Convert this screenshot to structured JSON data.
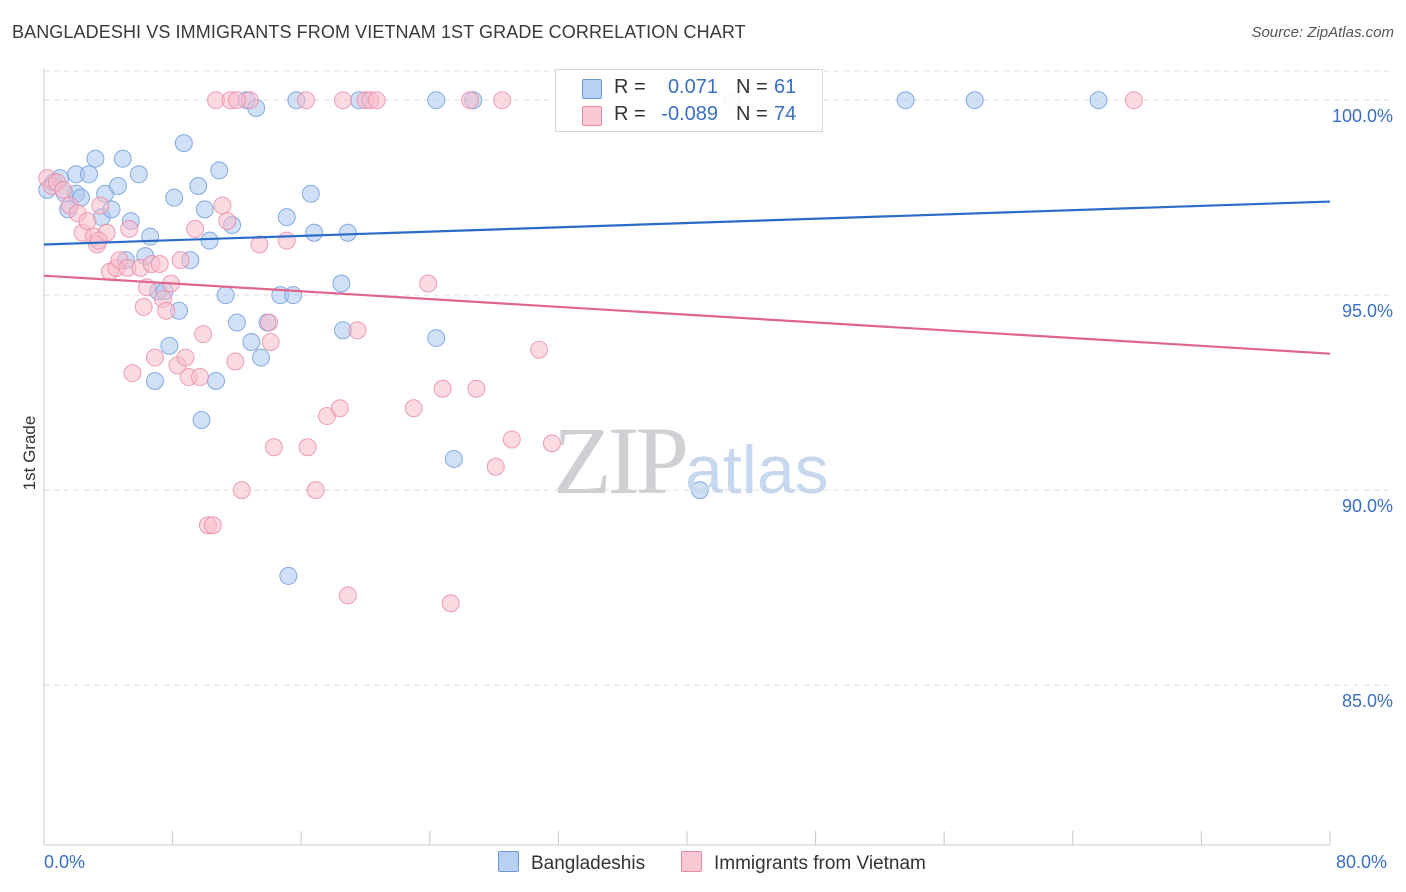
{
  "header": {
    "title": "BANGLADESHI VS IMMIGRANTS FROM VIETNAM 1ST GRADE CORRELATION CHART",
    "source": "Source: ZipAtlas.com"
  },
  "watermark": {
    "zip": "ZIP",
    "atlas": "atlas"
  },
  "legend": {
    "rows": [
      {
        "r_label": "R =",
        "r_value": "0.071",
        "n_label": "N =",
        "n_value": "61"
      },
      {
        "r_label": "R =",
        "r_value": "-0.089",
        "n_label": "N =",
        "n_value": "74"
      }
    ]
  },
  "chart_data": {
    "type": "scatter",
    "title": "BANGLADESHI VS IMMIGRANTS FROM VIETNAM 1ST GRADE CORRELATION CHART",
    "xlabel": "",
    "ylabel": "1st Grade",
    "xlim": [
      0,
      80
    ],
    "ylim": [
      80.9,
      100.8
    ],
    "x_tick_labels": [
      "0.0%",
      "80.0%"
    ],
    "y_ticks": [
      85,
      90,
      95,
      100
    ],
    "y_tick_labels": [
      "85.0%",
      "90.0%",
      "95.0%",
      "100.0%"
    ],
    "grid": true,
    "legend_position": "bottom-center",
    "series": [
      {
        "name": "Bangladeshis",
        "color": "#a9c6ef",
        "edge_color": "#6b9ad8",
        "trend_color": "#2a6cc8",
        "trend": {
          "x": [
            0,
            80
          ],
          "y": [
            96.3,
            97.4
          ]
        },
        "r": 0.071,
        "n": 61,
        "points": [
          [
            0.2,
            97.7
          ],
          [
            0.6,
            97.9
          ],
          [
            1.0,
            98.0
          ],
          [
            1.3,
            97.6
          ],
          [
            1.5,
            97.2
          ],
          [
            2.0,
            98.1
          ],
          [
            2.0,
            97.6
          ],
          [
            2.3,
            97.5
          ],
          [
            2.8,
            98.1
          ],
          [
            3.2,
            98.5
          ],
          [
            3.6,
            97.0
          ],
          [
            3.8,
            97.6
          ],
          [
            4.2,
            97.2
          ],
          [
            4.6,
            97.8
          ],
          [
            4.9,
            98.5
          ],
          [
            5.1,
            95.9
          ],
          [
            5.4,
            96.9
          ],
          [
            5.9,
            98.1
          ],
          [
            6.3,
            96.0
          ],
          [
            6.6,
            96.5
          ],
          [
            6.9,
            92.8
          ],
          [
            7.1,
            95.1
          ],
          [
            7.5,
            95.1
          ],
          [
            7.8,
            93.7
          ],
          [
            8.1,
            97.5
          ],
          [
            8.4,
            94.6
          ],
          [
            8.7,
            98.9
          ],
          [
            9.1,
            95.9
          ],
          [
            9.6,
            97.8
          ],
          [
            9.8,
            91.8
          ],
          [
            10.0,
            97.2
          ],
          [
            10.3,
            96.4
          ],
          [
            10.7,
            92.8
          ],
          [
            10.9,
            98.2
          ],
          [
            11.3,
            95.0
          ],
          [
            11.7,
            96.8
          ],
          [
            12.0,
            94.3
          ],
          [
            12.6,
            100.0
          ],
          [
            12.9,
            93.8
          ],
          [
            13.2,
            99.8
          ],
          [
            13.5,
            93.4
          ],
          [
            13.9,
            94.3
          ],
          [
            14.7,
            95.0
          ],
          [
            15.1,
            97.0
          ],
          [
            15.5,
            95.0
          ],
          [
            15.7,
            100.0
          ],
          [
            16.6,
            97.6
          ],
          [
            16.8,
            96.6
          ],
          [
            18.5,
            95.3
          ],
          [
            18.6,
            94.1
          ],
          [
            18.9,
            96.6
          ],
          [
            19.6,
            100.0
          ],
          [
            24.4,
            100.0
          ],
          [
            24.4,
            93.9
          ],
          [
            25.5,
            90.8
          ],
          [
            26.7,
            100.0
          ],
          [
            40.8,
            90.0
          ],
          [
            53.6,
            100.0
          ],
          [
            57.9,
            100.0
          ],
          [
            65.6,
            100.0
          ],
          [
            15.2,
            87.8
          ]
        ]
      },
      {
        "name": "Immigrants from Vietnam",
        "color": "#f7bccb",
        "edge_color": "#e88aa6",
        "trend_color": "#e0648c",
        "trend": {
          "x": [
            0,
            80
          ],
          "y": [
            95.5,
            93.5
          ]
        },
        "r": -0.089,
        "n": 74,
        "points": [
          [
            0.2,
            98.0
          ],
          [
            0.5,
            97.8
          ],
          [
            0.8,
            97.9
          ],
          [
            1.2,
            97.7
          ],
          [
            1.6,
            97.3
          ],
          [
            2.1,
            97.1
          ],
          [
            2.4,
            96.6
          ],
          [
            2.7,
            96.9
          ],
          [
            3.1,
            96.5
          ],
          [
            3.3,
            96.3
          ],
          [
            3.5,
            97.3
          ],
          [
            3.9,
            96.6
          ],
          [
            4.1,
            95.6
          ],
          [
            4.5,
            95.7
          ],
          [
            4.7,
            95.9
          ],
          [
            5.2,
            95.7
          ],
          [
            5.3,
            96.7
          ],
          [
            5.5,
            93.0
          ],
          [
            6.0,
            95.7
          ],
          [
            6.2,
            94.7
          ],
          [
            6.4,
            95.2
          ],
          [
            6.7,
            95.8
          ],
          [
            6.9,
            93.4
          ],
          [
            7.2,
            95.8
          ],
          [
            7.4,
            94.9
          ],
          [
            7.6,
            94.6
          ],
          [
            7.9,
            95.3
          ],
          [
            8.3,
            93.2
          ],
          [
            8.5,
            95.9
          ],
          [
            8.8,
            93.4
          ],
          [
            9.0,
            92.9
          ],
          [
            9.4,
            96.7
          ],
          [
            9.7,
            92.9
          ],
          [
            9.9,
            94.0
          ],
          [
            10.2,
            89.1
          ],
          [
            10.5,
            89.1
          ],
          [
            10.7,
            100.0
          ],
          [
            11.1,
            97.3
          ],
          [
            11.4,
            96.9
          ],
          [
            11.6,
            100.0
          ],
          [
            11.9,
            93.3
          ],
          [
            12.3,
            90.0
          ],
          [
            12.8,
            100.0
          ],
          [
            13.4,
            96.3
          ],
          [
            14.0,
            94.3
          ],
          [
            14.1,
            93.8
          ],
          [
            14.3,
            91.1
          ],
          [
            15.1,
            96.4
          ],
          [
            16.4,
            91.1
          ],
          [
            16.9,
            90.0
          ],
          [
            17.6,
            91.9
          ],
          [
            18.4,
            92.1
          ],
          [
            18.6,
            100.0
          ],
          [
            18.9,
            87.3
          ],
          [
            19.5,
            94.1
          ],
          [
            20.0,
            100.0
          ],
          [
            20.3,
            100.0
          ],
          [
            20.7,
            100.0
          ],
          [
            23.0,
            92.1
          ],
          [
            23.9,
            95.3
          ],
          [
            24.8,
            92.6
          ],
          [
            25.3,
            87.1
          ],
          [
            26.5,
            100.0
          ],
          [
            26.9,
            92.6
          ],
          [
            28.1,
            90.6
          ],
          [
            28.5,
            100.0
          ],
          [
            29.1,
            91.3
          ],
          [
            30.8,
            93.6
          ],
          [
            31.6,
            91.2
          ],
          [
            42.8,
            100.0
          ],
          [
            67.8,
            100.0
          ],
          [
            12.0,
            100.0
          ],
          [
            3.4,
            96.4
          ],
          [
            16.3,
            100.0
          ]
        ]
      }
    ]
  }
}
